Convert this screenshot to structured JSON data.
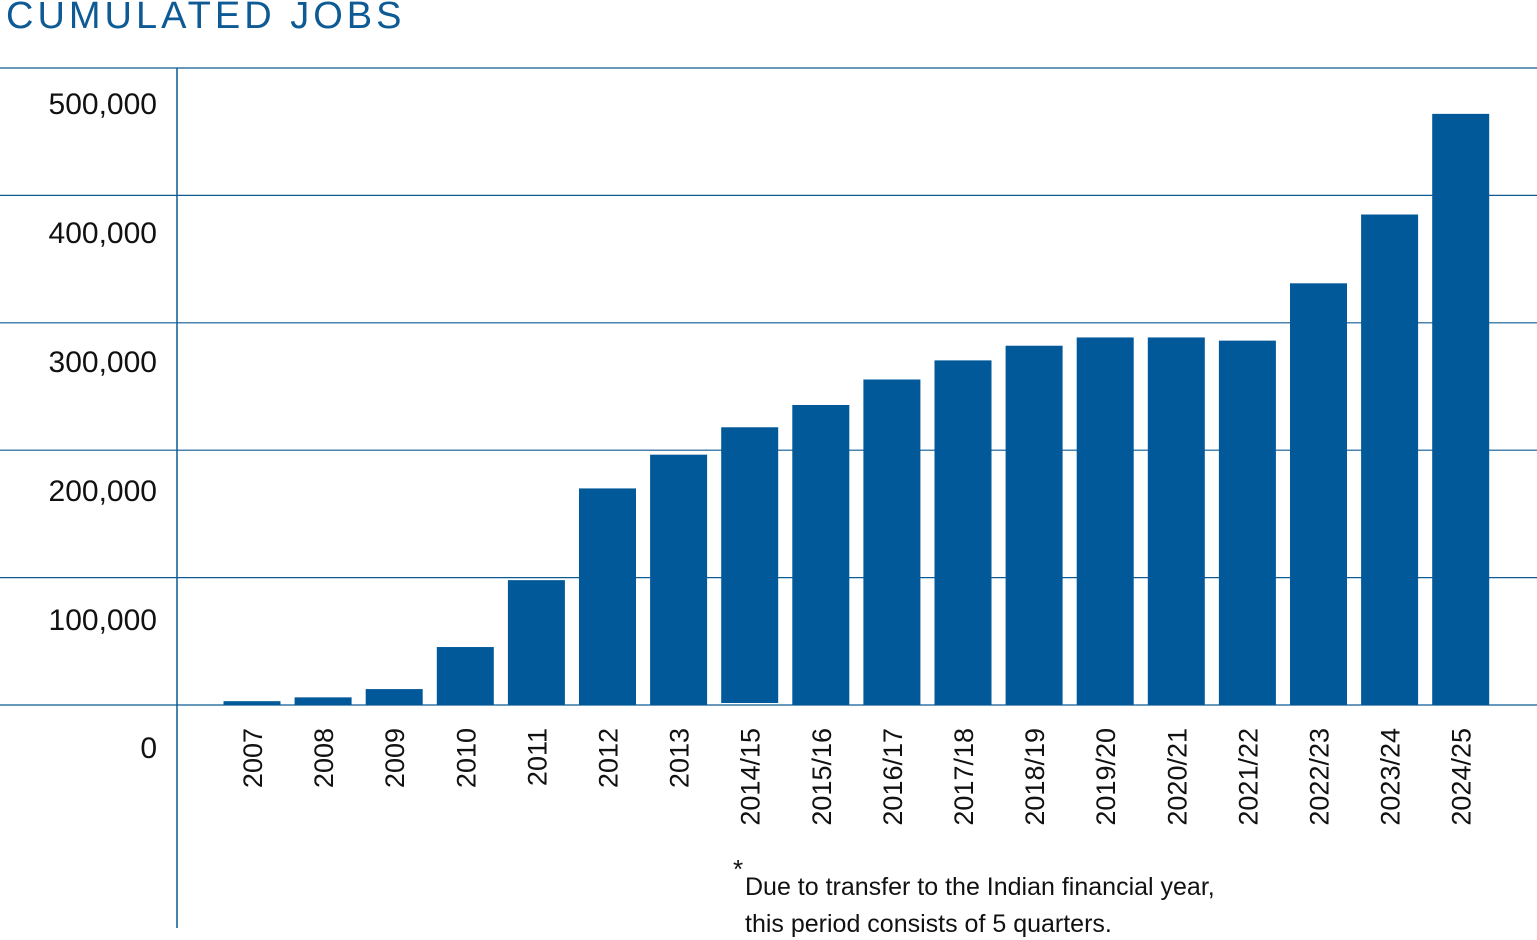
{
  "chart_data": {
    "type": "bar",
    "title": "CUMULATED JOBS",
    "xlabel": "",
    "ylabel": "",
    "ylim": [
      0,
      500000
    ],
    "yticks": [
      "0",
      "100,000",
      "200,000",
      "300,000",
      "400,000",
      "500,000"
    ],
    "grid": true,
    "categories": [
      "2007",
      "2008",
      "2009",
      "2010",
      "2011",
      "2012",
      "2013",
      "2014/15",
      "2015/16",
      "2016/17",
      "2017/18",
      "2018/19",
      "2019/20",
      "2020/21",
      "2021/22",
      "2022/23",
      "2023/24",
      "2024/25"
    ],
    "values": [
      3000,
      6000,
      12500,
      45500,
      98000,
      170000,
      196500,
      218000,
      235500,
      255500,
      270500,
      282000,
      288500,
      288500,
      286000,
      331000,
      385000,
      464000
    ],
    "bar_color": "#02599a",
    "annotation": {
      "marker": "*",
      "lines": [
        "Due to transfer to the Indian financial year,",
        "this period consists of 5 quarters."
      ]
    }
  }
}
